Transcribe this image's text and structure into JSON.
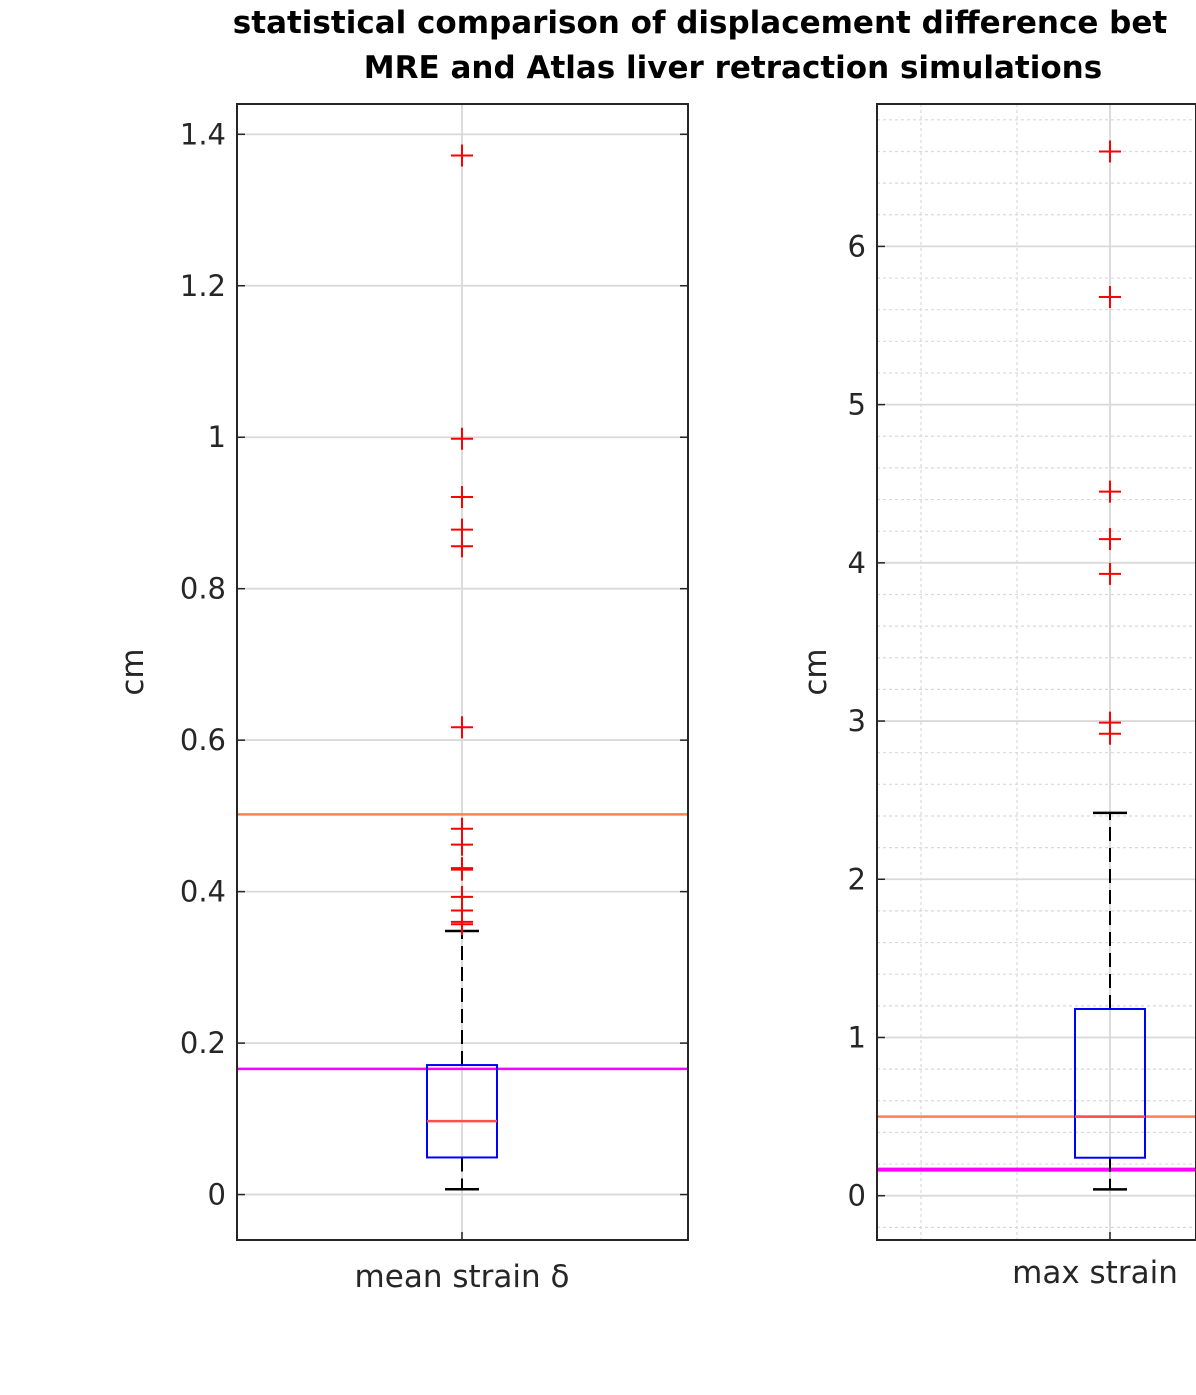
{
  "title": [
    "statistical comparison of displacement difference bet",
    "MRE and Atlas liver retraction simulations"
  ],
  "colors": {
    "box": "#0000ff",
    "median": "#ff4d4d",
    "outlier": "#ff0000",
    "whisker": "#000000",
    "threshold_orange": "#ff7f50",
    "threshold_magenta": "#ff00ff",
    "grid": "#d9d9d9"
  },
  "chart_data": [
    {
      "type": "box",
      "title": "",
      "xlabel": "mean strain δ",
      "ylabel": "cm",
      "ylim": [
        -0.06,
        1.44
      ],
      "yticks": [
        0,
        0.2,
        0.4,
        0.6,
        0.8,
        1,
        1.2,
        1.4
      ],
      "ytick_labels": [
        "0",
        "0.2",
        "0.4",
        "0.6",
        "0.8",
        "1",
        "1.2",
        "1.4"
      ],
      "grid": "major",
      "box": {
        "min": 0.007,
        "q1": 0.049,
        "median": 0.097,
        "q3": 0.171,
        "max": 0.348
      },
      "outliers": [
        1.372,
        0.998,
        0.921,
        0.878,
        0.856,
        0.617,
        0.483,
        0.462,
        0.431,
        0.429,
        0.393,
        0.375,
        0.36,
        0.357
      ],
      "reference_lines": [
        {
          "y": 0.502,
          "color": "orange"
        },
        {
          "y": 0.166,
          "color": "magenta"
        }
      ]
    },
    {
      "type": "box",
      "title": "",
      "xlabel": "max strain",
      "ylabel": "cm",
      "ylim": [
        -0.28,
        6.9
      ],
      "yticks": [
        0,
        1,
        2,
        3,
        4,
        5,
        6
      ],
      "ytick_labels": [
        "0",
        "1",
        "2",
        "3",
        "4",
        "5",
        "6"
      ],
      "grid": "major and minor",
      "box": {
        "min": 0.04,
        "q1": 0.24,
        "median": 0.5,
        "q3": 1.18,
        "max": 2.42
      },
      "outliers": [
        6.6,
        5.68,
        4.45,
        4.15,
        3.93,
        2.99,
        2.92
      ],
      "reference_lines": [
        {
          "y": 0.5,
          "color": "orange"
        },
        {
          "y": 0.165,
          "color": "magenta"
        }
      ]
    }
  ]
}
